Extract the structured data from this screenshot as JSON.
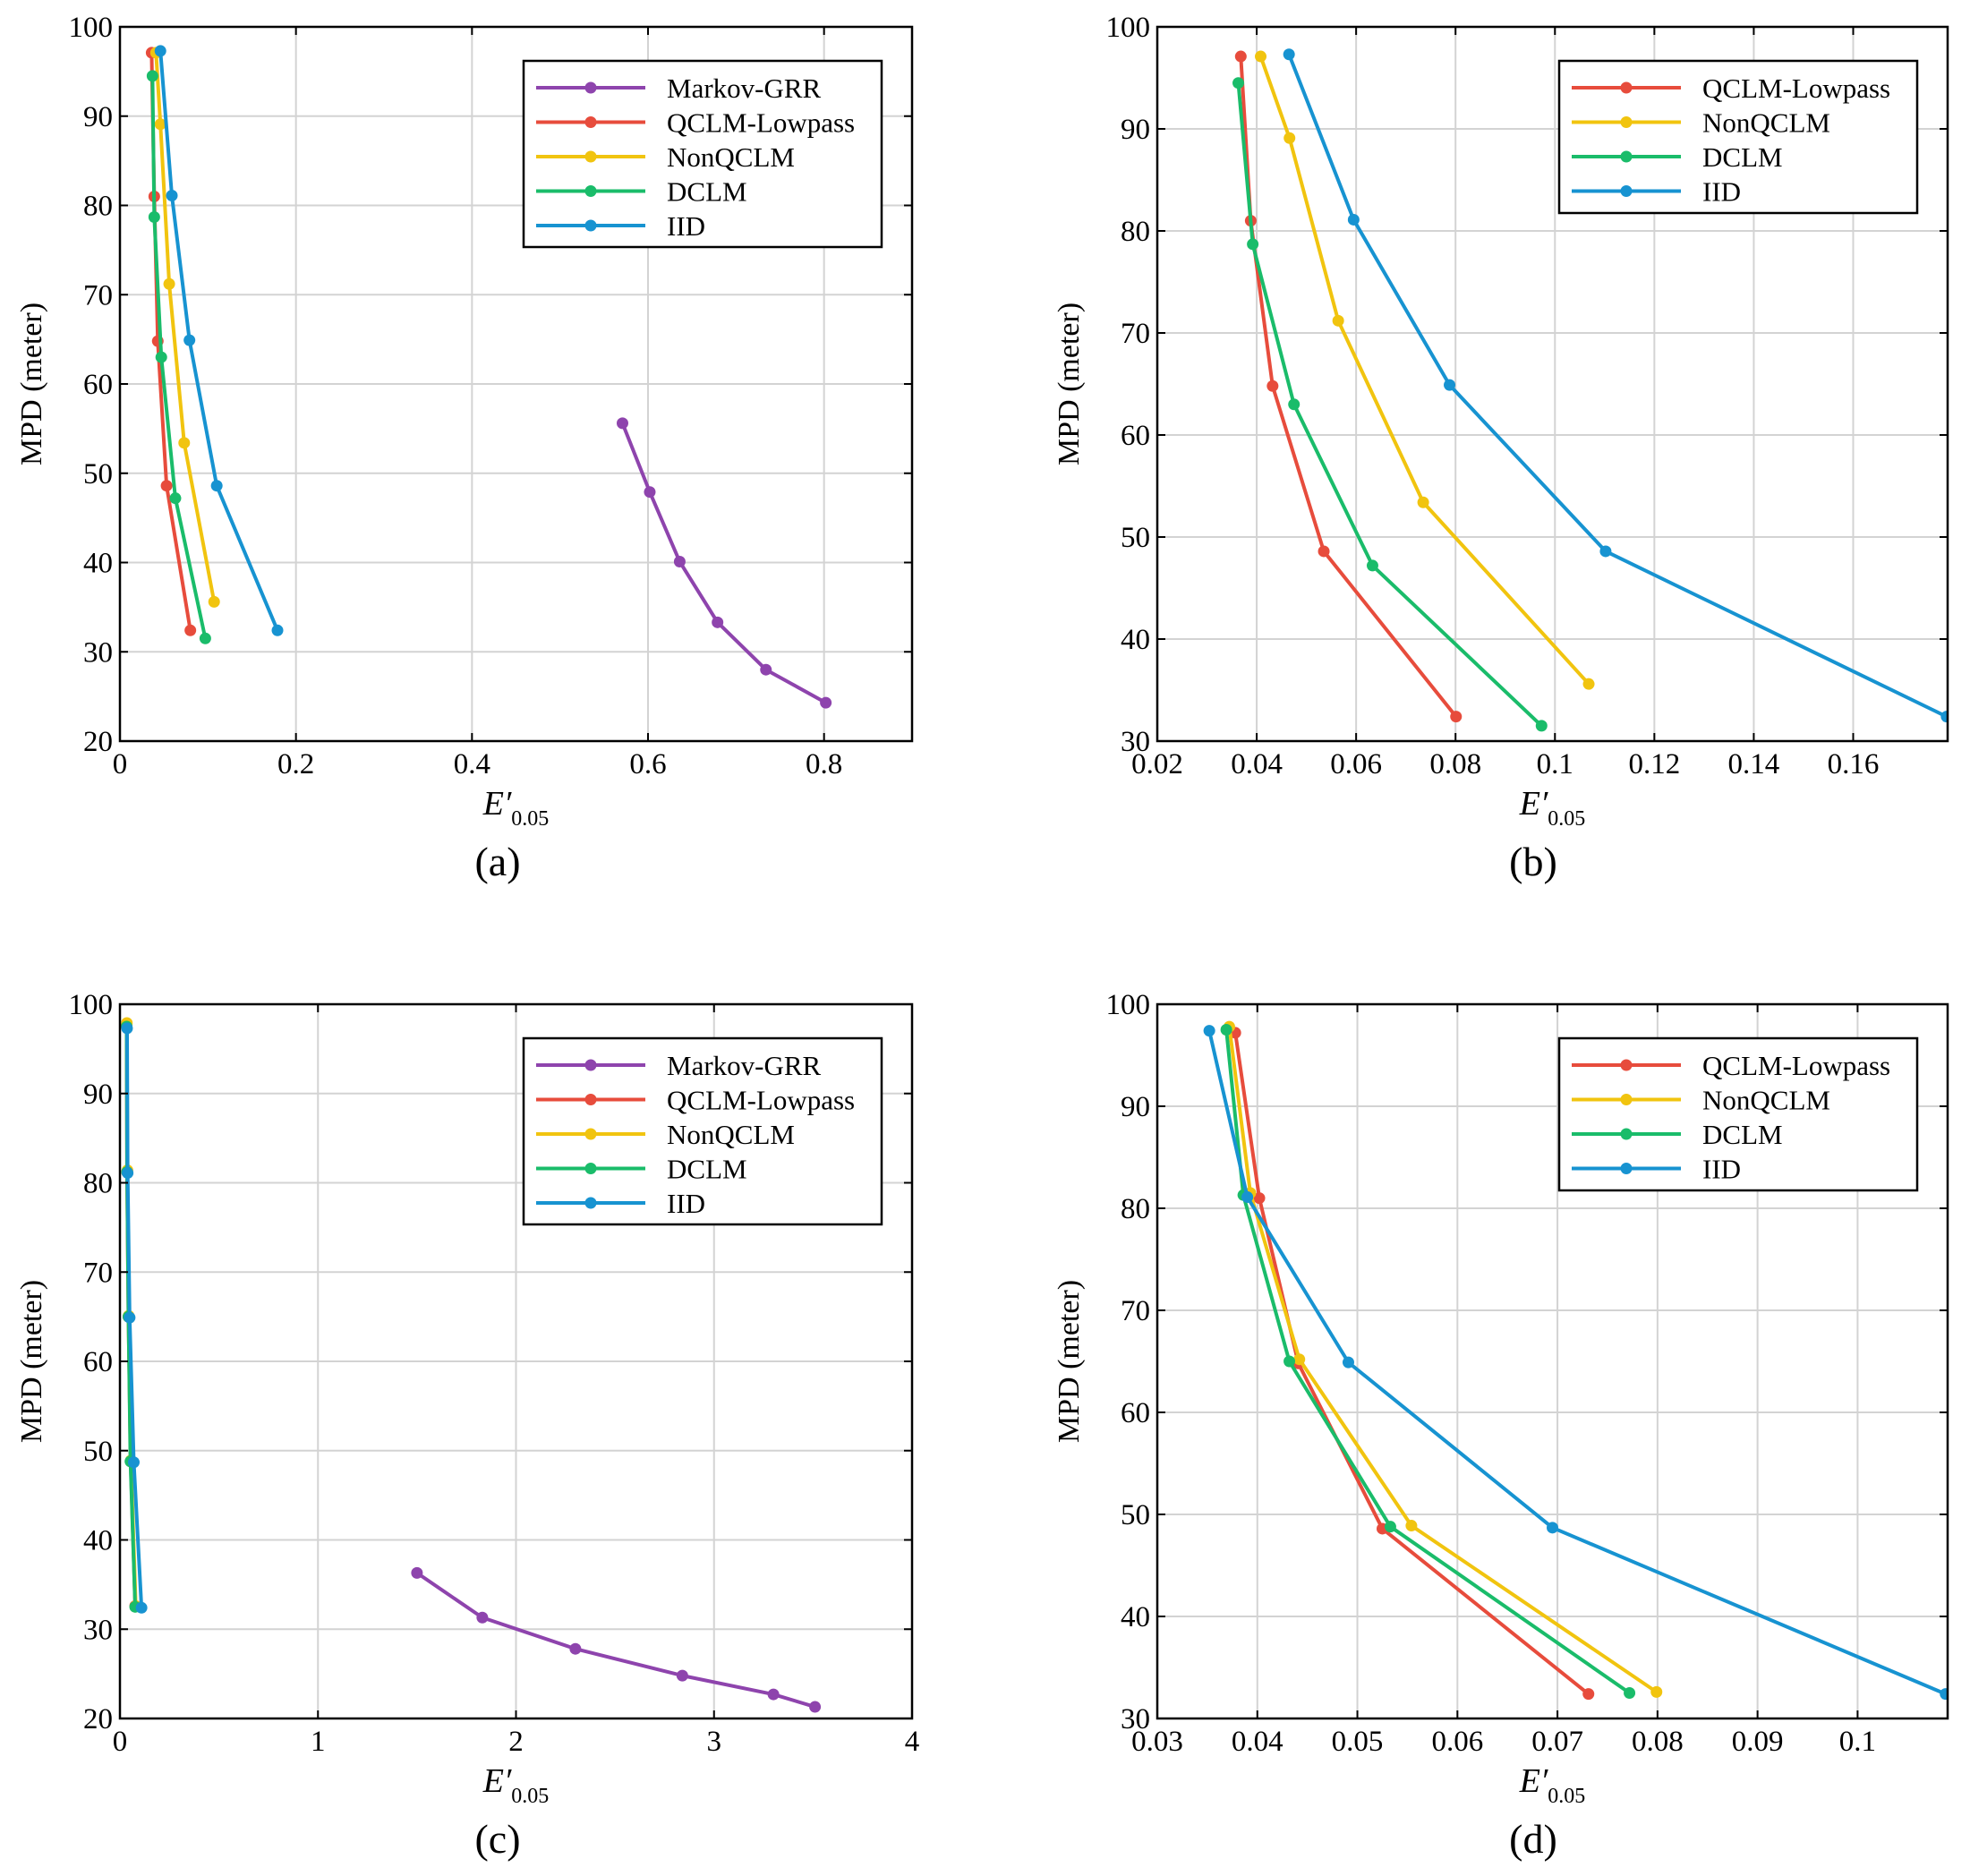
{
  "chart_data": [
    {
      "type": "line",
      "caption": "(a)",
      "xlabel": "E'0.05",
      "ylabel": "MPD (meter)",
      "xlim": [
        0,
        0.9
      ],
      "ylim": [
        20,
        100
      ],
      "xticks": [
        0,
        0.2,
        0.4,
        0.6,
        0.8
      ],
      "xtick_labels": [
        "0",
        "0.2",
        "0.4",
        "0.6",
        "0.8"
      ],
      "yticks": [
        20,
        30,
        40,
        50,
        60,
        70,
        80,
        90,
        100
      ],
      "ytick_labels": [
        "20",
        "30",
        "40",
        "50",
        "60",
        "70",
        "80",
        "90",
        "100"
      ],
      "grid": true,
      "legend_position": "top-right",
      "series": [
        {
          "name": "Markov-GRR",
          "color": "#8e44ad",
          "x": [
            0.571,
            0.602,
            0.636,
            0.679,
            0.734,
            0.802
          ],
          "y": [
            55.6,
            47.9,
            40.1,
            33.3,
            28.0,
            24.3
          ]
        },
        {
          "name": "QCLM-Lowpass",
          "color": "#e74c3c",
          "x": [
            0.036,
            0.039,
            0.043,
            0.053,
            0.08
          ],
          "y": [
            97.1,
            81.0,
            64.8,
            48.6,
            32.4
          ]
        },
        {
          "name": "NonQCLM",
          "color": "#f1c40f",
          "x": [
            0.041,
            0.046,
            0.056,
            0.073,
            0.107
          ],
          "y": [
            97.1,
            89.1,
            71.2,
            53.4,
            35.6
          ]
        },
        {
          "name": "DCLM",
          "color": "#1abc6a",
          "x": [
            0.037,
            0.039,
            0.047,
            0.063,
            0.097
          ],
          "y": [
            94.5,
            78.7,
            63.0,
            47.2,
            31.5
          ]
        },
        {
          "name": "IID",
          "color": "#1793d1",
          "x": [
            0.046,
            0.059,
            0.079,
            0.11,
            0.179
          ],
          "y": [
            97.3,
            81.1,
            64.9,
            48.6,
            32.4
          ]
        }
      ]
    },
    {
      "type": "line",
      "caption": "(b)",
      "xlabel": "E'0.05",
      "ylabel": "MPD (meter)",
      "xlim": [
        0.02,
        0.179
      ],
      "ylim": [
        30,
        100
      ],
      "xticks": [
        0.02,
        0.04,
        0.06,
        0.08,
        0.1,
        0.12,
        0.14,
        0.16
      ],
      "xtick_labels": [
        "0.02",
        "0.04",
        "0.06",
        "0.08",
        "0.1",
        "0.12",
        "0.14",
        "0.16"
      ],
      "yticks": [
        30,
        40,
        50,
        60,
        70,
        80,
        90,
        100
      ],
      "ytick_labels": [
        "30",
        "40",
        "50",
        "60",
        "70",
        "80",
        "90",
        "100"
      ],
      "grid": true,
      "legend_position": "top-right",
      "series": [
        {
          "name": "QCLM-Lowpass",
          "color": "#e74c3c",
          "x": [
            0.0368,
            0.0388,
            0.0432,
            0.0535,
            0.0801
          ],
          "y": [
            97.1,
            81.0,
            64.8,
            48.6,
            32.4
          ]
        },
        {
          "name": "NonQCLM",
          "color": "#f1c40f",
          "x": [
            0.0408,
            0.0466,
            0.0564,
            0.0735,
            0.1068
          ],
          "y": [
            97.1,
            89.1,
            71.2,
            53.4,
            35.6
          ]
        },
        {
          "name": "DCLM",
          "color": "#1abc6a",
          "x": [
            0.0363,
            0.0392,
            0.0475,
            0.0633,
            0.0973
          ],
          "y": [
            94.5,
            78.7,
            63.0,
            47.2,
            31.5
          ]
        },
        {
          "name": "IID",
          "color": "#1793d1",
          "x": [
            0.0465,
            0.0595,
            0.0788,
            0.1102,
            0.1788
          ],
          "y": [
            97.3,
            81.1,
            64.9,
            48.6,
            32.4
          ]
        }
      ]
    },
    {
      "type": "line",
      "caption": "(c)",
      "xlabel": "E'0.05",
      "ylabel": "MPD (meter)",
      "xlim": [
        0,
        4
      ],
      "ylim": [
        20,
        100
      ],
      "xticks": [
        0,
        1,
        2,
        3,
        4
      ],
      "xtick_labels": [
        "0",
        "1",
        "2",
        "3",
        "4"
      ],
      "yticks": [
        20,
        30,
        40,
        50,
        60,
        70,
        80,
        90,
        100
      ],
      "ytick_labels": [
        "20",
        "30",
        "40",
        "50",
        "60",
        "70",
        "80",
        "90",
        "100"
      ],
      "grid": true,
      "legend_position": "top-right",
      "series": [
        {
          "name": "Markov-GRR",
          "color": "#8e44ad",
          "x": [
            1.5,
            1.83,
            2.3,
            2.84,
            3.3,
            3.51
          ],
          "y": [
            36.3,
            31.3,
            27.8,
            24.8,
            22.7,
            21.3
          ]
        },
        {
          "name": "QCLM-Lowpass",
          "color": "#e74c3c",
          "x": [
            0.034,
            0.036,
            0.043,
            0.054,
            0.077
          ],
          "y": [
            97.7,
            81.2,
            65.0,
            48.8,
            32.6
          ]
        },
        {
          "name": "NonQCLM",
          "color": "#f1c40f",
          "x": [
            0.035,
            0.038,
            0.044,
            0.055,
            0.08
          ],
          "y": [
            97.9,
            81.4,
            65.1,
            48.9,
            32.6
          ]
        },
        {
          "name": "DCLM",
          "color": "#1abc6a",
          "x": [
            0.034,
            0.036,
            0.043,
            0.053,
            0.077
          ],
          "y": [
            97.5,
            81.2,
            65.0,
            48.8,
            32.5
          ]
        },
        {
          "name": "IID",
          "color": "#1793d1",
          "x": [
            0.036,
            0.039,
            0.049,
            0.07,
            0.109
          ],
          "y": [
            97.3,
            81.1,
            64.9,
            48.7,
            32.4
          ]
        }
      ]
    },
    {
      "type": "line",
      "caption": "(d)",
      "xlabel": "E'0.05",
      "ylabel": "MPD (meter)",
      "xlim": [
        0.03,
        0.109
      ],
      "ylim": [
        30,
        100
      ],
      "xticks": [
        0.03,
        0.04,
        0.05,
        0.06,
        0.07,
        0.08,
        0.09,
        0.1
      ],
      "xtick_labels": [
        "0.03",
        "0.04",
        "0.05",
        "0.06",
        "0.07",
        "0.08",
        "0.09",
        "0.1"
      ],
      "yticks": [
        30,
        40,
        50,
        60,
        70,
        80,
        90,
        100
      ],
      "ytick_labels": [
        "30",
        "40",
        "50",
        "60",
        "70",
        "80",
        "90",
        "100"
      ],
      "grid": true,
      "legend_position": "top-right",
      "series": [
        {
          "name": "QCLM-Lowpass",
          "color": "#e74c3c",
          "x": [
            0.0378,
            0.0402,
            0.0441,
            0.0525,
            0.0731
          ],
          "y": [
            97.2,
            81.0,
            64.8,
            48.6,
            32.4
          ]
        },
        {
          "name": "NonQCLM",
          "color": "#f1c40f",
          "x": [
            0.0372,
            0.0393,
            0.0442,
            0.0554,
            0.0799
          ],
          "y": [
            97.8,
            81.5,
            65.2,
            48.9,
            32.6
          ]
        },
        {
          "name": "DCLM",
          "color": "#1abc6a",
          "x": [
            0.0369,
            0.0386,
            0.0432,
            0.0533,
            0.0772
          ],
          "y": [
            97.5,
            81.3,
            65.0,
            48.8,
            32.5
          ]
        },
        {
          "name": "IID",
          "color": "#1793d1",
          "x": [
            0.0352,
            0.039,
            0.0491,
            0.0695,
            0.1088
          ],
          "y": [
            97.4,
            81.1,
            64.9,
            48.7,
            32.4
          ]
        }
      ]
    }
  ]
}
